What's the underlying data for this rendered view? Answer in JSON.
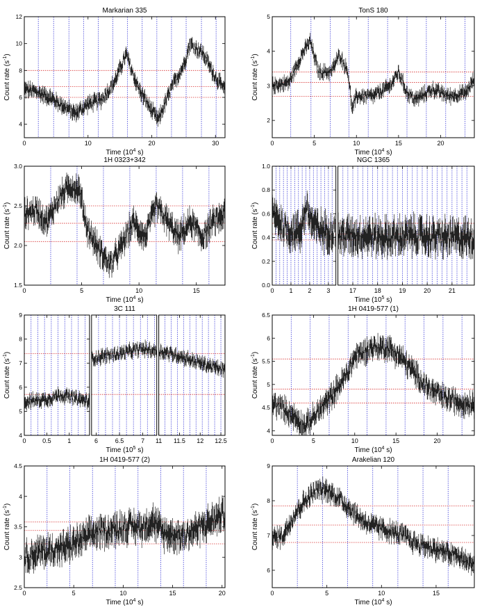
{
  "chart_data": [
    {
      "type": "line",
      "title": "Markarian 335",
      "xlabel_main": "Time (10",
      "xlabel_exp": "4",
      "xlabel_tail": " s)",
      "ylabel_main": "Count rate (s",
      "ylabel_exp": "-1",
      "ylabel_tail": ")",
      "panels": [
        {
          "xlim": [
            0,
            31.5
          ],
          "ylim": [
            3,
            12
          ],
          "xticks": [
            0,
            10,
            20,
            30
          ],
          "yticks": [
            4,
            6,
            8,
            10,
            12
          ],
          "vlines": [
            2.2,
            4.6,
            7.0,
            9.3,
            11.6,
            13.9,
            16.2,
            18.5,
            20.8,
            23.1,
            25.4,
            27.8,
            30.1
          ],
          "hlines": [
            6.0,
            6.8,
            8.0
          ]
        }
      ],
      "series_points": [
        [
          0,
          6.6
        ],
        [
          2,
          6.4
        ],
        [
          4,
          6.0
        ],
        [
          6,
          5.4
        ],
        [
          8,
          4.8
        ],
        [
          10,
          5.5
        ],
        [
          12,
          5.8
        ],
        [
          14,
          7.0
        ],
        [
          16,
          9.2
        ],
        [
          17,
          7.8
        ],
        [
          18,
          6.6
        ],
        [
          20,
          5.0
        ],
        [
          21,
          4.3
        ],
        [
          23,
          6.6
        ],
        [
          25,
          8.4
        ],
        [
          26,
          10.0
        ],
        [
          28,
          9.3
        ],
        [
          30,
          7.5
        ],
        [
          31.5,
          6.5
        ]
      ],
      "scatter": 0.7
    },
    {
      "type": "line",
      "title": "TonS 180",
      "xlabel_main": "Time (10",
      "xlabel_exp": "4",
      "xlabel_tail": " s)",
      "ylabel_main": "Count rate (s",
      "ylabel_exp": "-1",
      "ylabel_tail": ")",
      "panels": [
        {
          "xlim": [
            0,
            24
          ],
          "ylim": [
            1.5,
            5
          ],
          "xticks": [
            0,
            5,
            10,
            15,
            20
          ],
          "yticks": [
            2,
            3,
            4,
            5
          ],
          "vlines": [
            2.2,
            4.6,
            6.9,
            9.1,
            11.4,
            13.7,
            16.0,
            18.3,
            20.6,
            22.9
          ],
          "hlines": [
            2.7,
            3.1,
            3.4
          ]
        }
      ],
      "series_points": [
        [
          0,
          3.0
        ],
        [
          2,
          3.1
        ],
        [
          3.5,
          3.9
        ],
        [
          4.5,
          4.3
        ],
        [
          5.5,
          3.4
        ],
        [
          7,
          3.4
        ],
        [
          8,
          3.9
        ],
        [
          9,
          3.4
        ],
        [
          9.5,
          2.3
        ],
        [
          10,
          2.7
        ],
        [
          12,
          2.7
        ],
        [
          14,
          3.0
        ],
        [
          15,
          3.4
        ],
        [
          16,
          2.8
        ],
        [
          17,
          2.6
        ],
        [
          19,
          2.9
        ],
        [
          21,
          2.7
        ],
        [
          23,
          2.8
        ],
        [
          24,
          3.2
        ]
      ],
      "scatter": 0.25
    },
    {
      "type": "line",
      "title": "1H 0323+342",
      "xlabel_main": "Time (10",
      "xlabel_exp": "4",
      "xlabel_tail": " s)",
      "ylabel_main": "Count rate (s",
      "ylabel_exp": "-1",
      "ylabel_tail": ")",
      "panels": [
        {
          "xlim": [
            0,
            17.5
          ],
          "ylim": [
            1.5,
            3
          ],
          "xticks": [
            0,
            5,
            10,
            15
          ],
          "yticks": [
            1.5,
            2.0,
            2.5,
            3.0
          ],
          "vlines": [
            2.3,
            4.6,
            6.9,
            9.2,
            11.5,
            13.8,
            16.1
          ],
          "hlines": [
            2.05,
            2.28,
            2.5
          ]
        }
      ],
      "series_points": [
        [
          0,
          2.4
        ],
        [
          1,
          2.45
        ],
        [
          2,
          2.3
        ],
        [
          3,
          2.6
        ],
        [
          4,
          2.75
        ],
        [
          4.8,
          2.7
        ],
        [
          5.5,
          2.2
        ],
        [
          6.5,
          1.95
        ],
        [
          7.5,
          1.75
        ],
        [
          8.5,
          2.0
        ],
        [
          9.5,
          2.3
        ],
        [
          10.5,
          2.1
        ],
        [
          11.5,
          2.5
        ],
        [
          12.5,
          2.3
        ],
        [
          13.5,
          2.1
        ],
        [
          14.5,
          2.3
        ],
        [
          15.5,
          2.1
        ],
        [
          16.5,
          2.3
        ],
        [
          17.5,
          2.4
        ]
      ],
      "scatter": 0.2
    },
    {
      "type": "line",
      "title": "NGC 1365",
      "xlabel_main": "Time (10",
      "xlabel_exp": "5",
      "xlabel_tail": " s)",
      "ylabel_main": "Count rate (s",
      "ylabel_exp": "-1",
      "ylabel_tail": ")",
      "panels": [
        {
          "xlim": [
            0,
            3.4
          ],
          "ylim": [
            0,
            1
          ],
          "xticks": [
            0,
            1,
            2,
            3
          ],
          "yticks": [
            0.0,
            0.2,
            0.4,
            0.6,
            0.8,
            1.0
          ],
          "vlines": [
            0.2,
            0.4,
            0.6,
            0.8,
            1.0,
            1.2,
            1.4,
            1.6,
            1.8,
            2.0,
            2.2,
            2.4,
            2.6,
            2.8,
            3.0,
            3.2
          ],
          "hlines": [
            0.38,
            0.43,
            0.52
          ]
        },
        {
          "xlim": [
            16.4,
            21.9
          ],
          "ylim": [
            0,
            1
          ],
          "xticks": [
            17,
            18,
            19,
            20,
            21
          ],
          "yticks": [],
          "vlines": [
            16.6,
            16.8,
            17.0,
            17.2,
            17.4,
            17.6,
            17.8,
            18.0,
            18.2,
            18.4,
            18.6,
            18.8,
            19.0,
            19.2,
            19.4,
            19.6,
            19.8,
            20.0,
            20.2,
            20.4,
            20.6,
            20.8,
            21.0,
            21.2,
            21.4,
            21.6
          ],
          "hlines": [
            0.38,
            0.43,
            0.52
          ]
        }
      ],
      "series_points": [
        [
          0,
          0.6
        ],
        [
          0.3,
          0.55
        ],
        [
          0.8,
          0.45
        ],
        [
          1.5,
          0.45
        ],
        [
          1.8,
          0.65
        ],
        [
          2.2,
          0.5
        ],
        [
          2.8,
          0.45
        ],
        [
          3.4,
          0.45
        ],
        [
          16.4,
          0.42
        ],
        [
          17.5,
          0.42
        ],
        [
          18.5,
          0.4
        ],
        [
          19.5,
          0.42
        ],
        [
          20.5,
          0.4
        ],
        [
          21.9,
          0.4
        ]
      ],
      "scatter": 0.18
    },
    {
      "type": "line",
      "title": "3C 111",
      "xlabel_main": "Time (10",
      "xlabel_exp": "5",
      "xlabel_tail": " s)",
      "ylabel_main": "Count rate (s",
      "ylabel_exp": "-1",
      "ylabel_tail": ")",
      "panels": [
        {
          "xlim": [
            0,
            1.45
          ],
          "ylim": [
            4,
            9
          ],
          "xticks": [
            0,
            0.5,
            1
          ],
          "xticklabels": [
            "0",
            "0.5",
            "1"
          ],
          "yticks": [
            4,
            5,
            6,
            7,
            8,
            9
          ],
          "vlines": [
            0.15,
            0.3,
            0.45,
            0.6,
            0.75,
            0.9,
            1.05,
            1.2,
            1.35
          ],
          "hlines": [
            5.7,
            7.4
          ]
        },
        {
          "xlim": [
            5.9,
            7.3
          ],
          "ylim": [
            4,
            9
          ],
          "xticks": [
            6,
            6.5,
            7
          ],
          "xticklabels": [
            "6",
            "6.5",
            "7"
          ],
          "yticks": [],
          "vlines": [
            6.05,
            6.2,
            6.35,
            6.5,
            6.65,
            6.8,
            6.95,
            7.1,
            7.25
          ],
          "hlines": [
            5.7,
            7.4
          ]
        },
        {
          "xlim": [
            11,
            12.6
          ],
          "ylim": [
            4,
            9
          ],
          "xticks": [
            11,
            11.5,
            12,
            12.5
          ],
          "xticklabels": [
            "11",
            "11.5",
            "12",
            "12.5"
          ],
          "yticks": [],
          "vlines": [
            11.15,
            11.3,
            11.45,
            11.6,
            11.75,
            11.9,
            12.05,
            12.2,
            12.35,
            12.5
          ],
          "hlines": [
            5.7,
            7.4
          ]
        }
      ],
      "series_points": [
        [
          0,
          5.4
        ],
        [
          0.5,
          5.5
        ],
        [
          0.8,
          5.7
        ],
        [
          1.2,
          5.5
        ],
        [
          1.45,
          5.4
        ],
        [
          5.9,
          7.2
        ],
        [
          6.5,
          7.4
        ],
        [
          7.0,
          7.6
        ],
        [
          7.3,
          7.5
        ],
        [
          11,
          7.5
        ],
        [
          11.5,
          7.3
        ],
        [
          12,
          7.0
        ],
        [
          12.6,
          6.7
        ]
      ],
      "scatter": 0.35
    },
    {
      "type": "line",
      "title": "1H 0419-577 (1)",
      "xlabel_main": "Time (10",
      "xlabel_exp": "4",
      "xlabel_tail": " s)",
      "ylabel_main": "Count rate (s",
      "ylabel_exp": "-1",
      "ylabel_tail": ")",
      "panels": [
        {
          "xlim": [
            0,
            24.5
          ],
          "ylim": [
            3.9,
            6.5
          ],
          "xticks": [
            0,
            5,
            10,
            15,
            20
          ],
          "yticks": [
            4.0,
            4.5,
            5.0,
            5.5,
            6.0,
            6.5
          ],
          "vlines": [
            2.3,
            4.6,
            6.9,
            9.2,
            11.5,
            13.8,
            16.1,
            18.4,
            20.7,
            23.0
          ],
          "hlines": [
            4.6,
            4.9,
            5.55
          ]
        }
      ],
      "series_points": [
        [
          0,
          4.6
        ],
        [
          2,
          4.4
        ],
        [
          4,
          4.1
        ],
        [
          5,
          4.3
        ],
        [
          7,
          4.7
        ],
        [
          9,
          5.2
        ],
        [
          10,
          5.6
        ],
        [
          12,
          5.8
        ],
        [
          14,
          5.8
        ],
        [
          15.5,
          5.6
        ],
        [
          17,
          5.3
        ],
        [
          19,
          4.9
        ],
        [
          21,
          4.7
        ],
        [
          23,
          4.6
        ],
        [
          24.5,
          4.6
        ]
      ],
      "scatter": 0.3
    },
    {
      "type": "line",
      "title": "1H 0419-577 (2)",
      "xlabel_main": "Time (10",
      "xlabel_exp": "4",
      "xlabel_tail": " s)",
      "ylabel_main": "Count rate (s",
      "ylabel_exp": "-1",
      "ylabel_tail": ")",
      "panels": [
        {
          "xlim": [
            0,
            20.3
          ],
          "ylim": [
            2.5,
            4.5
          ],
          "xticks": [
            0,
            5,
            10,
            15,
            20
          ],
          "yticks": [
            2.5,
            3.0,
            3.5,
            4.0,
            4.5
          ],
          "vlines": [
            2.3,
            4.6,
            6.9,
            9.2,
            11.5,
            13.8,
            16.1,
            18.4
          ],
          "hlines": [
            3.22,
            3.44,
            3.58
          ]
        }
      ],
      "series_points": [
        [
          0,
          3.0
        ],
        [
          2,
          3.1
        ],
        [
          4,
          3.15
        ],
        [
          6,
          3.3
        ],
        [
          7,
          3.4
        ],
        [
          9,
          3.45
        ],
        [
          10,
          3.5
        ],
        [
          12,
          3.5
        ],
        [
          13,
          3.6
        ],
        [
          14,
          3.4
        ],
        [
          16,
          3.35
        ],
        [
          18,
          3.5
        ],
        [
          20,
          3.7
        ]
      ],
      "scatter": 0.3
    },
    {
      "type": "line",
      "title": "Arakelian 120",
      "xlabel_main": "Time (10",
      "xlabel_exp": "4",
      "xlabel_tail": " s)",
      "ylabel_main": "Count rate (s",
      "ylabel_exp": "-1",
      "ylabel_tail": ")",
      "panels": [
        {
          "xlim": [
            0,
            18.5
          ],
          "ylim": [
            5.5,
            9
          ],
          "xticks": [
            0,
            5,
            10,
            15
          ],
          "yticks": [
            6,
            7,
            8,
            9
          ],
          "vlines": [
            2.3,
            4.6,
            6.9,
            9.2,
            11.5,
            13.8,
            16.1
          ],
          "hlines": [
            6.8,
            7.3,
            7.85
          ]
        }
      ],
      "series_points": [
        [
          0,
          6.9
        ],
        [
          1,
          7.0
        ],
        [
          2,
          7.6
        ],
        [
          3,
          8.0
        ],
        [
          4,
          8.3
        ],
        [
          5,
          8.3
        ],
        [
          6,
          8.1
        ],
        [
          7,
          7.8
        ],
        [
          8,
          7.5
        ],
        [
          9,
          7.3
        ],
        [
          10,
          7.2
        ],
        [
          11,
          7.1
        ],
        [
          12,
          7.0
        ],
        [
          13,
          6.8
        ],
        [
          14,
          6.7
        ],
        [
          15,
          6.6
        ],
        [
          16,
          6.5
        ],
        [
          17,
          6.4
        ],
        [
          18,
          6.2
        ],
        [
          18.5,
          6.2
        ]
      ],
      "scatter": 0.35
    }
  ]
}
